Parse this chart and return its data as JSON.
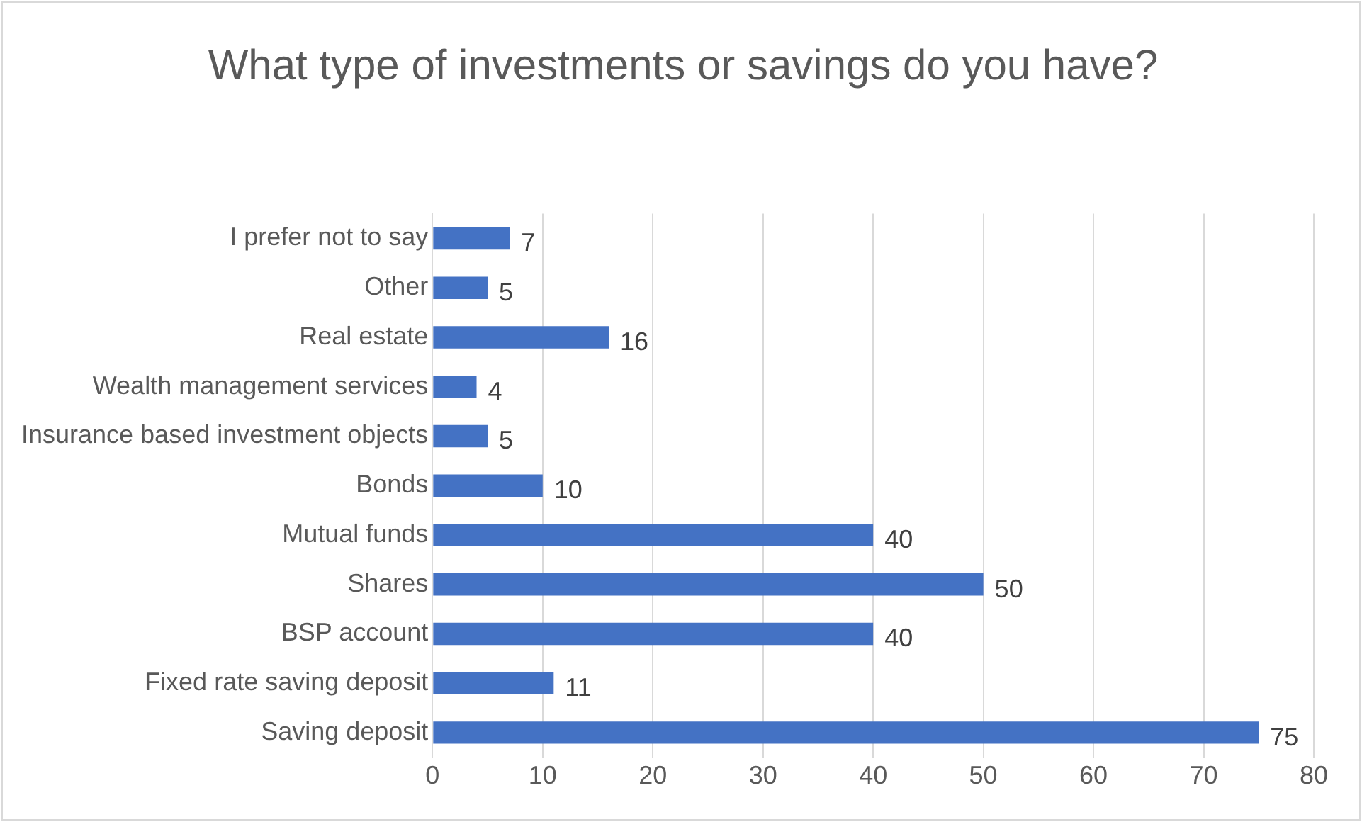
{
  "chart_data": {
    "type": "bar",
    "orientation": "horizontal",
    "title": "What type of investments or savings do you have?",
    "categories": [
      "I prefer not to say",
      "Other",
      "Real estate",
      "Wealth management services",
      "Insurance based investment objects",
      "Bonds",
      "Mutual funds",
      "Shares",
      "BSP account",
      "Fixed rate saving deposit",
      "Saving deposit"
    ],
    "values": [
      7,
      5,
      16,
      4,
      5,
      10,
      40,
      50,
      40,
      11,
      75
    ],
    "color": "#4472c4",
    "xlim": [
      0,
      80
    ],
    "xticks": [
      0,
      10,
      20,
      30,
      40,
      50,
      60,
      70,
      80
    ],
    "grid": "x",
    "legend": false,
    "data_labels": true
  }
}
